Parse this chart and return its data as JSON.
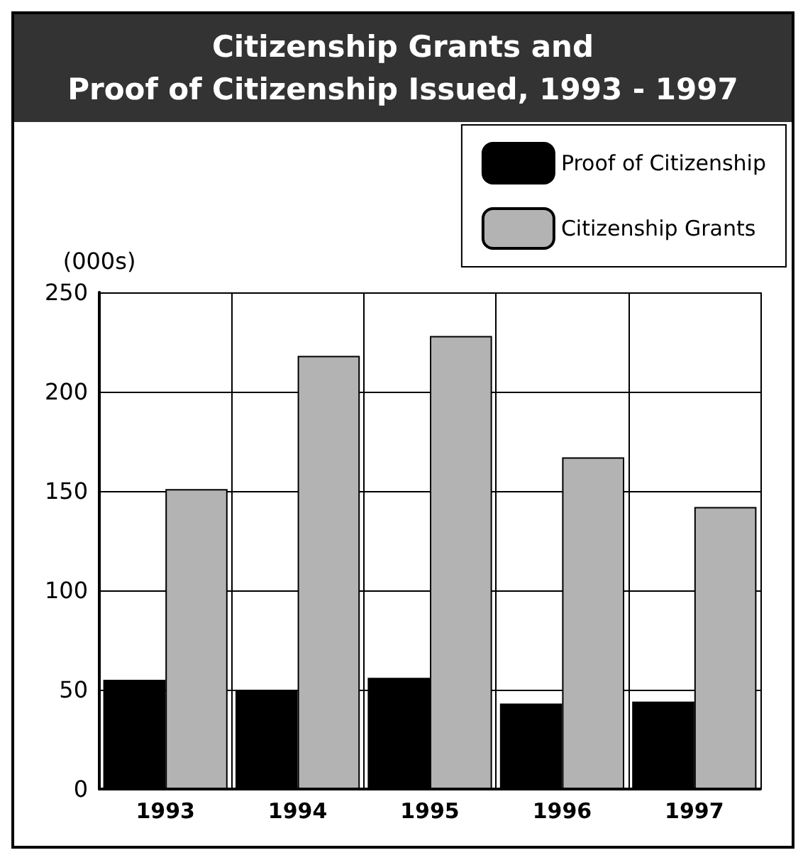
{
  "chart_data": {
    "type": "bar",
    "title": "Citizenship Grants and\nProof of Citizenship Issued, 1993 - 1997",
    "ylabel": "(000s)",
    "categories": [
      "1993",
      "1994",
      "1995",
      "1996",
      "1997"
    ],
    "series": [
      {
        "name": "Proof of Citizenship",
        "color": "#000000",
        "values": [
          55,
          50,
          56,
          43,
          44
        ]
      },
      {
        "name": "Citizenship Grants",
        "color": "#b3b3b3",
        "values": [
          151,
          218,
          228,
          167,
          142
        ]
      }
    ],
    "ylim": [
      0,
      250
    ],
    "yticks": [
      0,
      50,
      100,
      150,
      200,
      250
    ],
    "grid": true,
    "legend": "top right"
  }
}
